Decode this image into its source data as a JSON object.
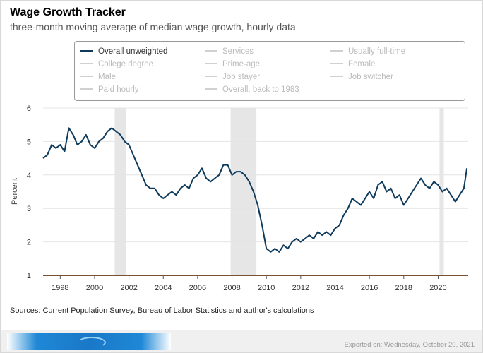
{
  "header": {
    "title": "Wage Growth Tracker",
    "subtitle": "three-month moving average of median wage growth, hourly data"
  },
  "legend": {
    "items": [
      {
        "label": "Overall unweighted",
        "active": true
      },
      {
        "label": "Services",
        "active": false
      },
      {
        "label": "Usually full-time",
        "active": false
      },
      {
        "label": "College degree",
        "active": false
      },
      {
        "label": "Prime-age",
        "active": false
      },
      {
        "label": "Female",
        "active": false
      },
      {
        "label": "Male",
        "active": false
      },
      {
        "label": "Job stayer",
        "active": false
      },
      {
        "label": "Job switcher",
        "active": false
      },
      {
        "label": "Paid hourly",
        "active": false
      },
      {
        "label": "Overall, back to 1983",
        "active": false
      }
    ]
  },
  "chart_data": {
    "type": "line",
    "ylabel": "Percent",
    "xlabel": "",
    "ylim": [
      1,
      6
    ],
    "xlim": [
      1997.0,
      2021.75
    ],
    "yticks": [
      1,
      2,
      3,
      4,
      5,
      6
    ],
    "xticks": [
      "1998",
      "2000",
      "2002",
      "2004",
      "2006",
      "2008",
      "2010",
      "2012",
      "2014",
      "2016",
      "2018",
      "2020"
    ],
    "grid": true,
    "line_color": "#0e3a5c",
    "recessions": [
      [
        2001.17,
        2001.83
      ],
      [
        2007.92,
        2009.42
      ],
      [
        2020.08,
        2020.33
      ]
    ],
    "series": [
      {
        "name": "Overall unweighted",
        "x": [
          1997.0,
          1997.25,
          1997.5,
          1997.75,
          1998.0,
          1998.25,
          1998.5,
          1998.75,
          1999.0,
          1999.25,
          1999.5,
          1999.75,
          2000.0,
          2000.25,
          2000.5,
          2000.75,
          2001.0,
          2001.25,
          2001.5,
          2001.75,
          2002.0,
          2002.25,
          2002.5,
          2002.75,
          2003.0,
          2003.25,
          2003.5,
          2003.75,
          2004.0,
          2004.25,
          2004.5,
          2004.75,
          2005.0,
          2005.25,
          2005.5,
          2005.75,
          2006.0,
          2006.25,
          2006.5,
          2006.75,
          2007.0,
          2007.25,
          2007.5,
          2007.75,
          2008.0,
          2008.25,
          2008.5,
          2008.75,
          2009.0,
          2009.25,
          2009.5,
          2009.75,
          2010.0,
          2010.25,
          2010.5,
          2010.75,
          2011.0,
          2011.25,
          2011.5,
          2011.75,
          2012.0,
          2012.25,
          2012.5,
          2012.75,
          2013.0,
          2013.25,
          2013.5,
          2013.75,
          2014.0,
          2014.25,
          2014.5,
          2014.75,
          2015.0,
          2015.25,
          2015.5,
          2015.75,
          2016.0,
          2016.25,
          2016.5,
          2016.75,
          2017.0,
          2017.25,
          2017.5,
          2017.75,
          2018.0,
          2018.25,
          2018.5,
          2018.75,
          2019.0,
          2019.25,
          2019.5,
          2019.75,
          2020.0,
          2020.25,
          2020.5,
          2020.75,
          2021.0,
          2021.25,
          2021.5,
          2021.67
        ],
        "values": [
          4.5,
          4.6,
          4.9,
          4.8,
          4.9,
          4.7,
          5.4,
          5.2,
          4.9,
          5.0,
          5.2,
          4.9,
          4.8,
          5.0,
          5.1,
          5.3,
          5.4,
          5.3,
          5.2,
          5.0,
          4.9,
          4.6,
          4.3,
          4.0,
          3.7,
          3.6,
          3.6,
          3.4,
          3.3,
          3.4,
          3.5,
          3.4,
          3.6,
          3.7,
          3.6,
          3.9,
          4.0,
          4.2,
          3.9,
          3.8,
          3.9,
          4.0,
          4.3,
          4.3,
          4.0,
          4.1,
          4.1,
          4.0,
          3.8,
          3.5,
          3.1,
          2.5,
          1.8,
          1.7,
          1.8,
          1.7,
          1.9,
          1.8,
          2.0,
          2.1,
          2.0,
          2.1,
          2.2,
          2.1,
          2.3,
          2.2,
          2.3,
          2.2,
          2.4,
          2.5,
          2.8,
          3.0,
          3.3,
          3.2,
          3.1,
          3.3,
          3.5,
          3.3,
          3.7,
          3.8,
          3.5,
          3.6,
          3.3,
          3.4,
          3.1,
          3.3,
          3.5,
          3.7,
          3.9,
          3.7,
          3.6,
          3.8,
          3.7,
          3.5,
          3.6,
          3.4,
          3.2,
          3.4,
          3.6,
          4.2
        ]
      }
    ]
  },
  "sources": "Sources: Current Population Survey, Bureau of Labor Statistics and author's calculations",
  "footer": {
    "exported": "Exported on: Wednesday, October 20, 2021"
  }
}
